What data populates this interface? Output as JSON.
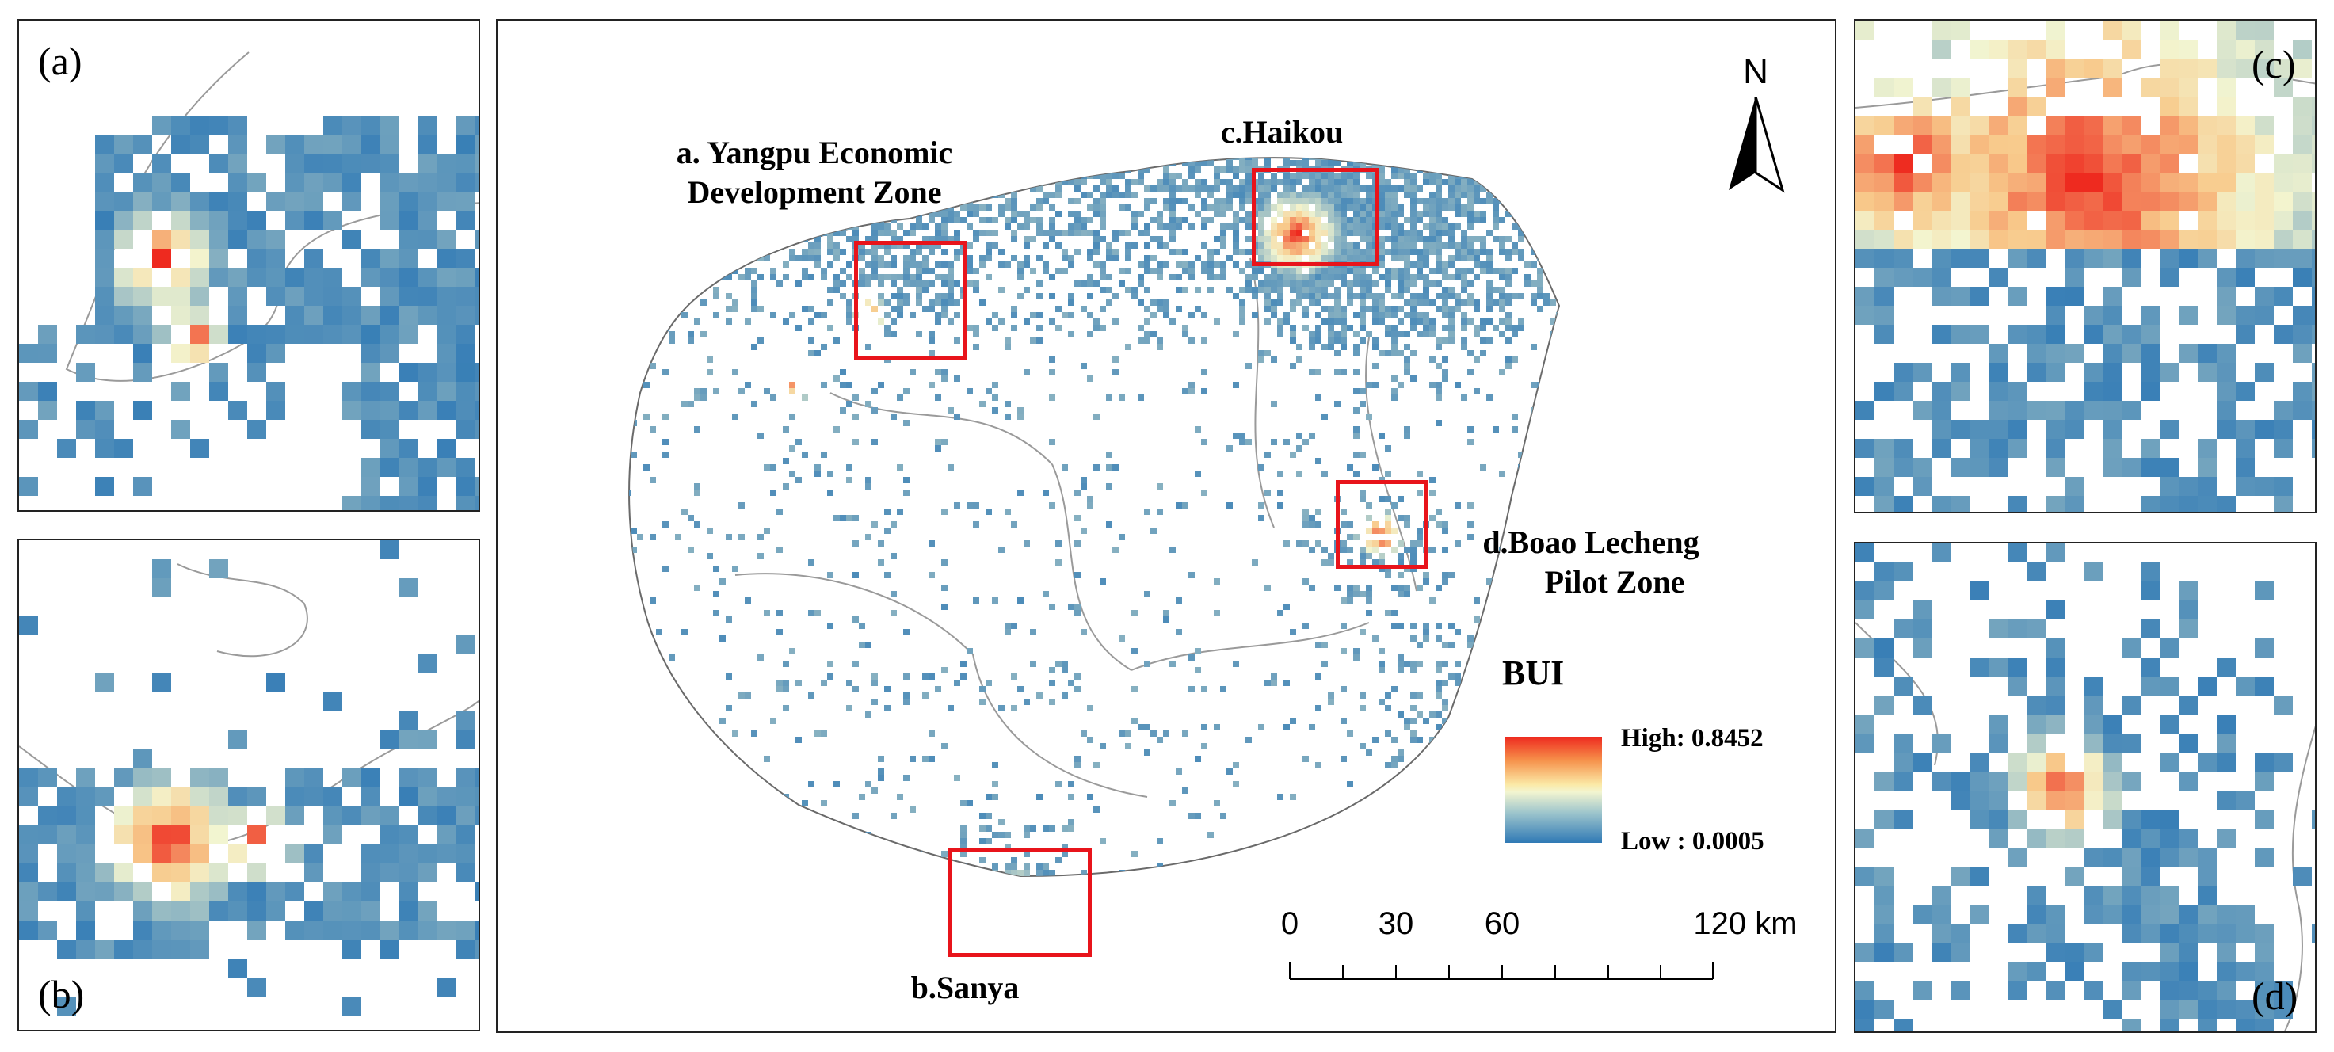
{
  "panels": {
    "a": {
      "label": "(a)"
    },
    "b": {
      "label": "(b)"
    },
    "c": {
      "label": "(c)"
    },
    "d": {
      "label": "(d)"
    }
  },
  "main_map": {
    "labels": {
      "yangpu_line1": "a. Yangpu Economic",
      "yangpu_line2": "Development Zone",
      "haikou": "c.Haikou",
      "boao_line1": "d.Boao Lecheng",
      "boao_line2": "Pilot Zone",
      "sanya": "b.Sanya"
    },
    "north_arrow": "N",
    "legend": {
      "title": "BUI",
      "high": "High: 0.8452",
      "low": "Low : 0.0005",
      "high_color": "#ee2a1f",
      "mid_color": "#f3f5d0",
      "low_color": "#2f79b5"
    },
    "scale_bar": {
      "ticks": [
        "0",
        "30",
        "60",
        "120 km"
      ]
    }
  },
  "colors": {
    "extent_box": "#e8141b",
    "border": "#222222",
    "boundary": "#9a9a9a"
  }
}
